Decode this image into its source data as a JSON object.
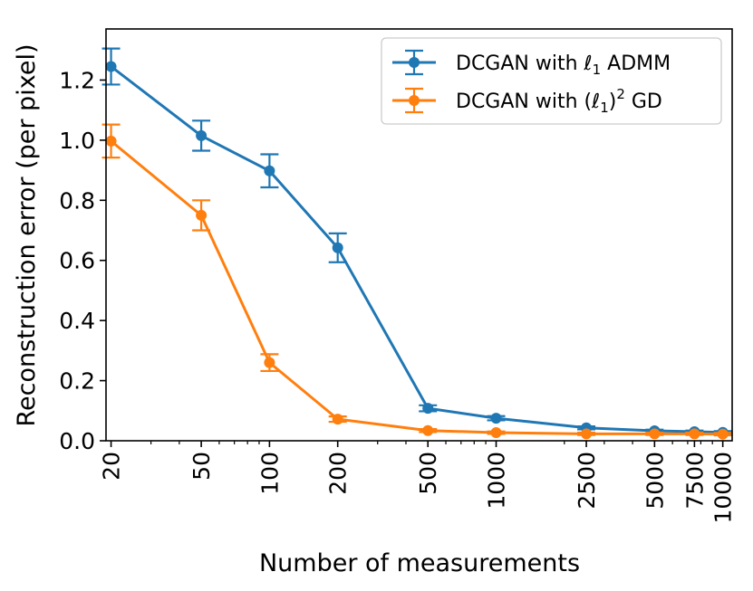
{
  "chart_data": {
    "type": "line",
    "title": "",
    "xlabel": "Number of measurements",
    "ylabel": "Reconstruction error (per pixel)",
    "xscale": "log",
    "x": [
      20,
      50,
      100,
      200,
      500,
      1000,
      2500,
      5000,
      7500,
      10000
    ],
    "x_tick_labels": [
      "20",
      "50",
      "100",
      "200",
      "500",
      "1000",
      "2500",
      "5000",
      "7500",
      "10000"
    ],
    "xlim": [
      19,
      11000
    ],
    "ylim": [
      0,
      1.37
    ],
    "y_ticks": [
      0.0,
      0.2,
      0.4,
      0.6,
      0.8,
      1.0,
      1.2
    ],
    "y_tick_labels": [
      "0.0",
      "0.2",
      "0.4",
      "0.6",
      "0.8",
      "1.0",
      "1.2"
    ],
    "grid": false,
    "legend_position": "top-right",
    "series": [
      {
        "name": "DCGAN with ℓ1 ADMM",
        "legend_main": "DCGAN with ℓ",
        "legend_sub": "1",
        "legend_tail": " ADMM",
        "color": "#1f77b4",
        "values": [
          1.245,
          1.015,
          0.898,
          0.642,
          0.108,
          0.075,
          0.043,
          0.033,
          0.03,
          0.028
        ],
        "errors": [
          0.06,
          0.05,
          0.055,
          0.048,
          0.01,
          0.007,
          0.005,
          0.004,
          0.004,
          0.004
        ]
      },
      {
        "name": "DCGAN with (ℓ1)2 GD",
        "legend_main": "DCGAN with (ℓ",
        "legend_sub": "1",
        "legend_mid": ")",
        "legend_sup": "2",
        "legend_tail": " GD",
        "color": "#ff7f0e",
        "values": [
          0.997,
          0.75,
          0.26,
          0.072,
          0.034,
          0.027,
          0.023,
          0.023,
          0.023,
          0.022
        ],
        "errors": [
          0.055,
          0.05,
          0.028,
          0.009,
          0.005,
          0.004,
          0.004,
          0.004,
          0.004,
          0.004
        ]
      }
    ]
  }
}
